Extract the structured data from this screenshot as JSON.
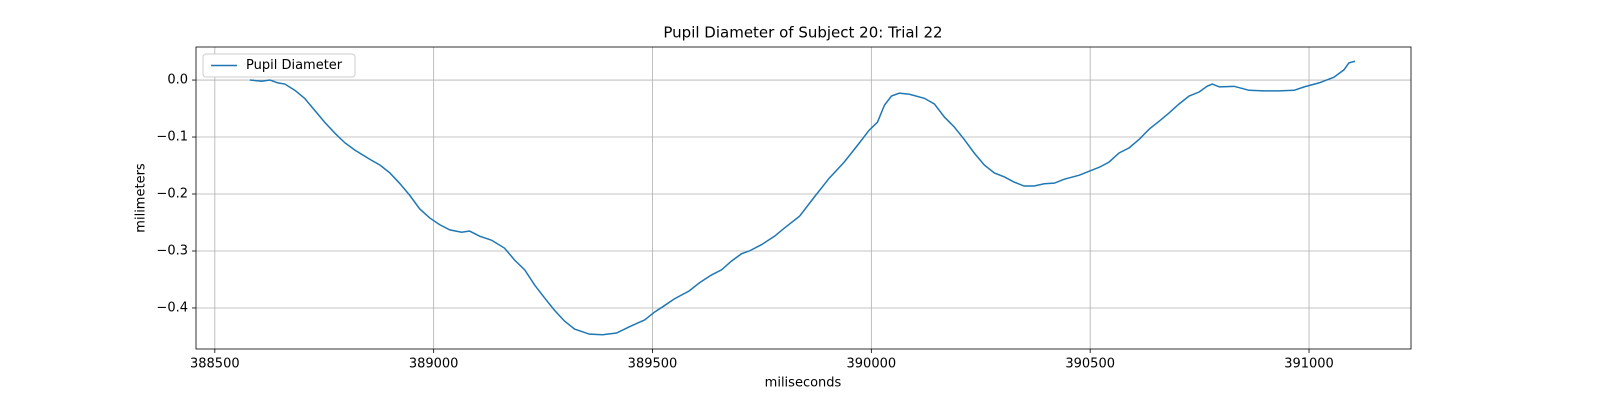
{
  "chart_data": {
    "type": "line",
    "title": "Pupil Diameter of Subject 20: Trial 22",
    "xlabel": "miliseconds",
    "ylabel": "milimeters",
    "x": [
      388580,
      388607,
      388626,
      388644,
      388660,
      388683,
      388705,
      388728,
      388751,
      388774,
      388797,
      388820,
      388854,
      388877,
      388900,
      388922,
      388945,
      388968,
      388991,
      389014,
      389037,
      389064,
      389082,
      389105,
      389132,
      389162,
      389185,
      389208,
      389231,
      389253,
      389276,
      389299,
      389322,
      389356,
      389386,
      389418,
      389447,
      389482,
      389505,
      389527,
      389550,
      389584,
      389607,
      389635,
      389658,
      389680,
      389703,
      389721,
      389749,
      389779,
      389801,
      389836,
      389870,
      389904,
      389938,
      389973,
      389995,
      390014,
      390030,
      390046,
      390064,
      390087,
      390121,
      390144,
      390167,
      390189,
      390212,
      390235,
      390258,
      390281,
      390304,
      390326,
      390349,
      390372,
      390395,
      390418,
      390441,
      390475,
      390498,
      390521,
      390543,
      390566,
      390589,
      390612,
      390635,
      390658,
      390680,
      390703,
      390726,
      390749,
      390767,
      390779,
      390795,
      390829,
      390863,
      390897,
      390932,
      390966,
      390989,
      391023,
      391057,
      391080,
      391091,
      391105
    ],
    "series": [
      {
        "name": "Pupil Diameter",
        "color": "#1f77b4",
        "values": [
          0.0,
          -0.002,
          0.0,
          -0.005,
          -0.007,
          -0.018,
          -0.032,
          -0.053,
          -0.074,
          -0.093,
          -0.11,
          -0.123,
          -0.139,
          -0.149,
          -0.163,
          -0.181,
          -0.202,
          -0.226,
          -0.242,
          -0.254,
          -0.263,
          -0.267,
          -0.265,
          -0.274,
          -0.281,
          -0.295,
          -0.316,
          -0.333,
          -0.36,
          -0.382,
          -0.404,
          -0.423,
          -0.437,
          -0.446,
          -0.447,
          -0.444,
          -0.433,
          -0.421,
          -0.407,
          -0.396,
          -0.384,
          -0.37,
          -0.356,
          -0.342,
          -0.333,
          -0.318,
          -0.305,
          -0.3,
          -0.289,
          -0.274,
          -0.26,
          -0.239,
          -0.205,
          -0.172,
          -0.144,
          -0.11,
          -0.088,
          -0.074,
          -0.044,
          -0.028,
          -0.023,
          -0.025,
          -0.032,
          -0.042,
          -0.065,
          -0.082,
          -0.104,
          -0.128,
          -0.149,
          -0.163,
          -0.17,
          -0.179,
          -0.186,
          -0.186,
          -0.182,
          -0.181,
          -0.174,
          -0.167,
          -0.16,
          -0.153,
          -0.144,
          -0.128,
          -0.119,
          -0.104,
          -0.086,
          -0.072,
          -0.058,
          -0.042,
          -0.028,
          -0.021,
          -0.011,
          -0.007,
          -0.012,
          -0.011,
          -0.018,
          -0.019,
          -0.019,
          -0.018,
          -0.012,
          -0.005,
          0.005,
          0.018,
          0.03,
          0.033
        ]
      }
    ],
    "xlim": [
      388457,
      391233
    ],
    "ylim": [
      -0.472,
      0.058
    ],
    "xticks": [
      388500,
      389000,
      389500,
      390000,
      390500,
      391000
    ],
    "yticks": [
      {
        "value": -0.4,
        "label": "−0.4"
      },
      {
        "value": -0.3,
        "label": "−0.3"
      },
      {
        "value": -0.2,
        "label": "−0.2"
      },
      {
        "value": -0.1,
        "label": "−0.1"
      },
      {
        "value": 0,
        "label": "0.0"
      }
    ],
    "grid": true,
    "legend": "upper-left"
  }
}
